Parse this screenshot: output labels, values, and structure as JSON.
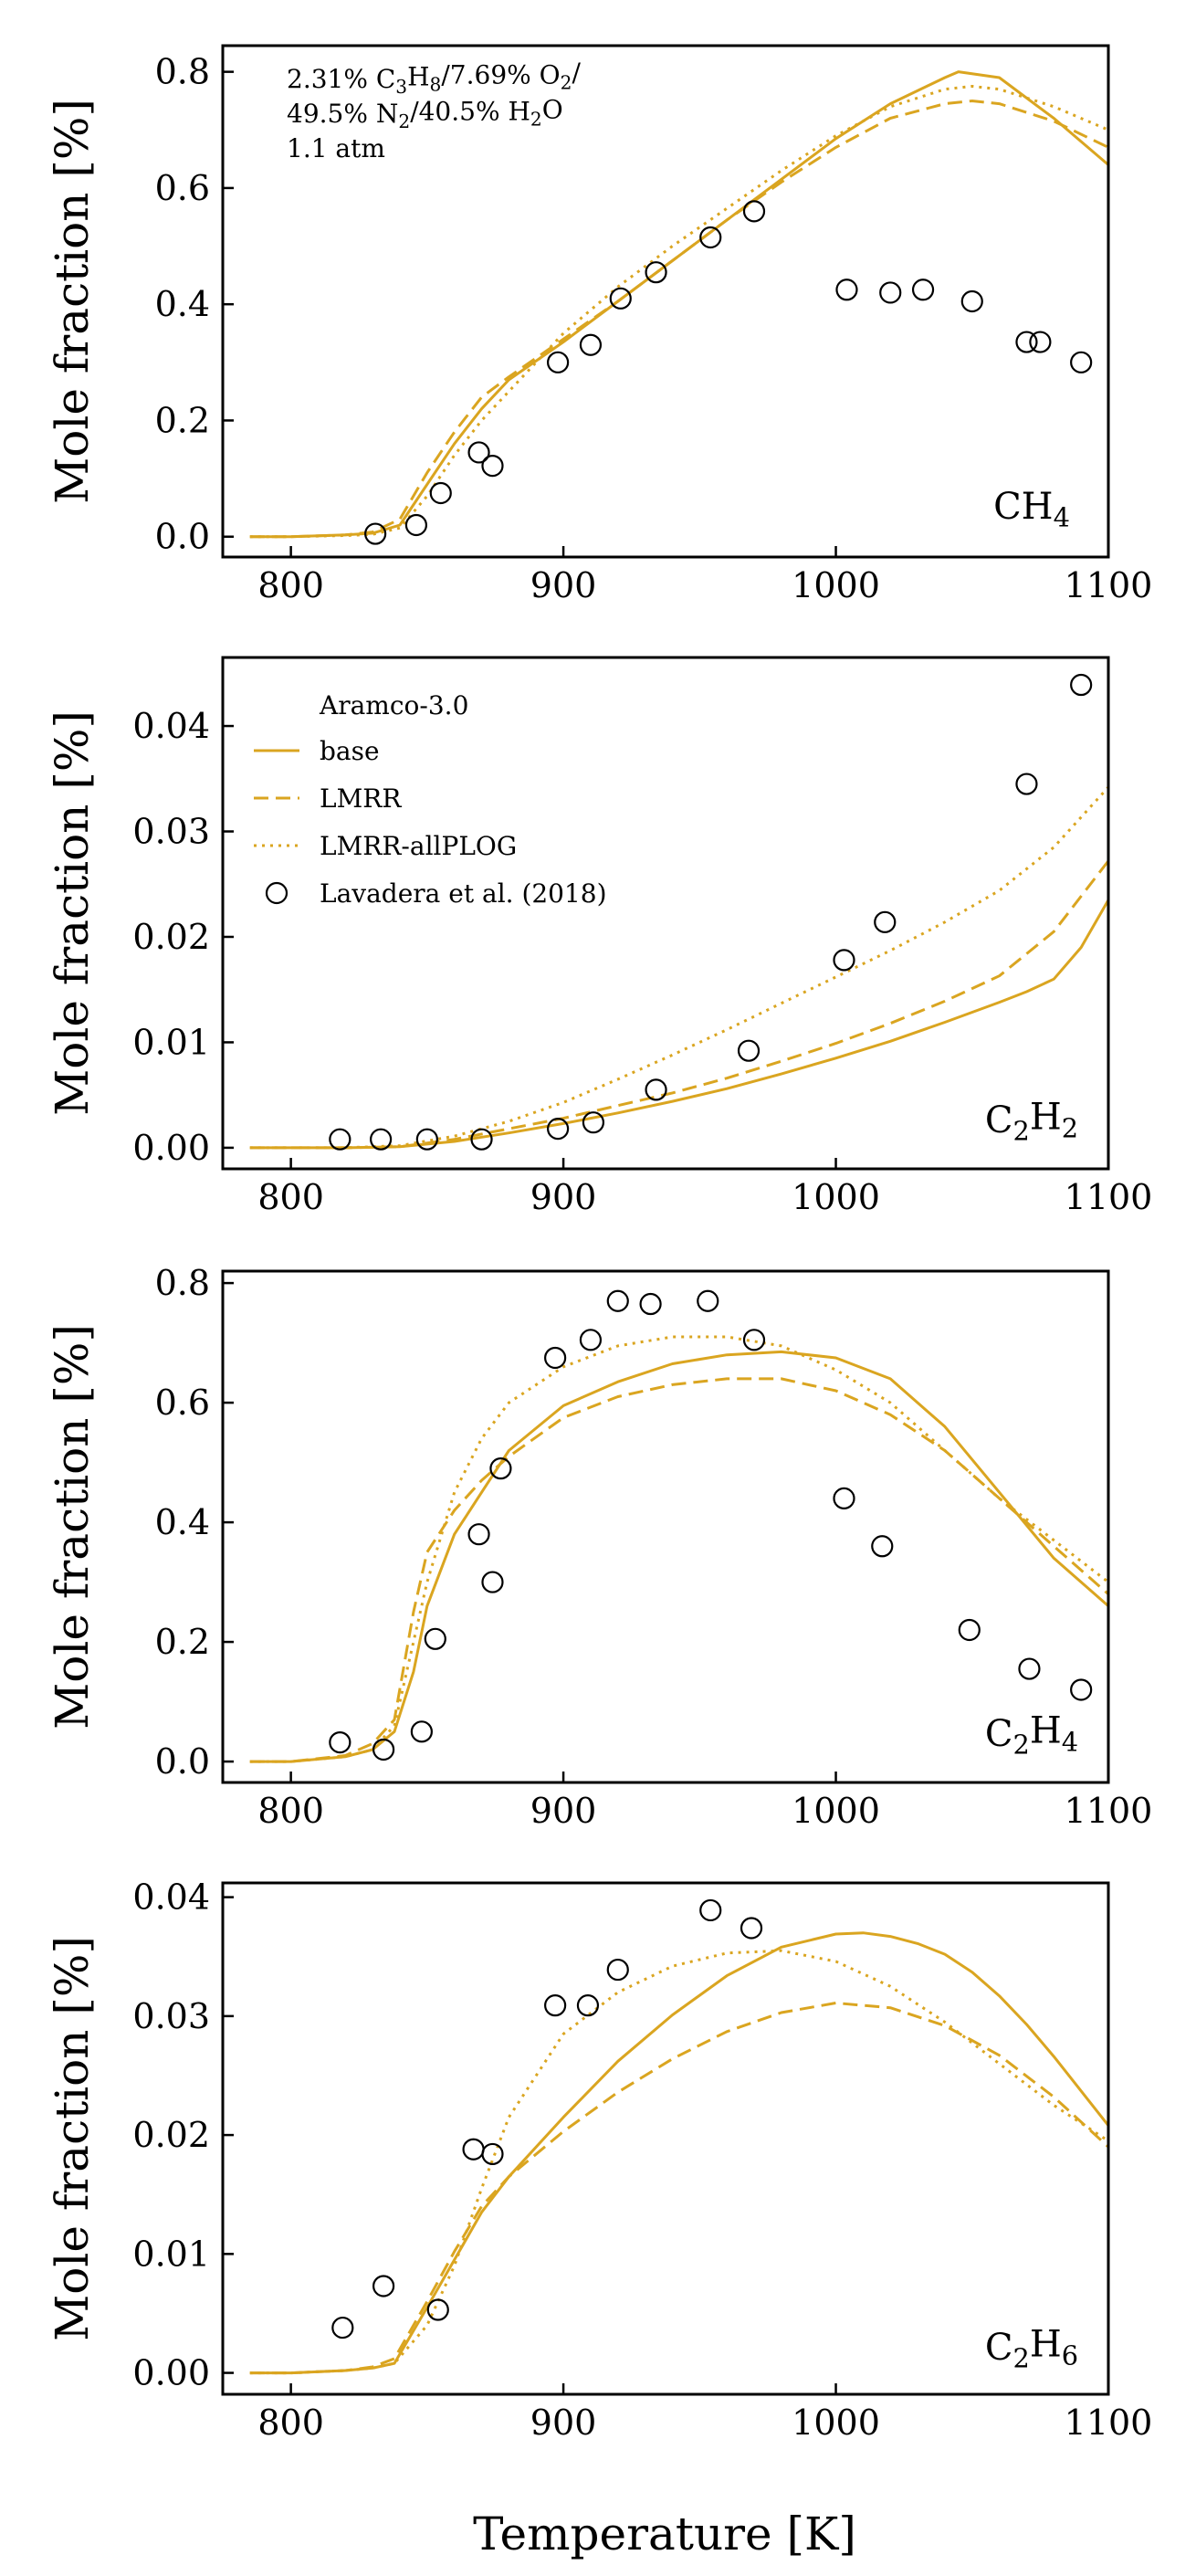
{
  "figure": {
    "xlabel": "Temperature [K]",
    "color": "#DAA520"
  },
  "legend": {
    "title": "Aramco-3.0",
    "entries": [
      "base",
      "LMRR",
      "LMRR-allPLOG",
      "Lavadera et al. (2018)"
    ]
  },
  "annotation": {
    "lines": [
      [
        "2.31% C",
        {
          "sub": "3"
        },
        "H",
        {
          "sub": "8"
        },
        "/7.69% O",
        {
          "sub": "2"
        },
        "/"
      ],
      [
        "49.5% N",
        {
          "sub": "2"
        },
        "/40.5% H",
        {
          "sub": "2"
        },
        "O"
      ],
      [
        "1.1 atm"
      ]
    ]
  },
  "chart_data": [
    {
      "type": "line",
      "species": [
        "CH",
        {
          "sub": "4"
        }
      ],
      "ylabel": "Mole fraction [%]",
      "xlim": [
        775,
        1100
      ],
      "ylim": [
        -0.035,
        0.845
      ],
      "xticks": [
        800,
        900,
        1000,
        1100
      ],
      "yticks": [
        0.0,
        0.2,
        0.4,
        0.6,
        0.8
      ],
      "ytick_labels": [
        "0.0",
        "0.2",
        "0.4",
        "0.6",
        "0.8"
      ],
      "series": [
        {
          "name": "base",
          "style": "solid",
          "x": [
            785,
            800,
            820,
            830,
            840,
            850,
            860,
            870,
            880,
            900,
            920,
            940,
            960,
            980,
            1000,
            1020,
            1040,
            1045,
            1060,
            1080,
            1100
          ],
          "y": [
            0,
            0,
            0.003,
            0.006,
            0.02,
            0.09,
            0.16,
            0.22,
            0.27,
            0.335,
            0.405,
            0.475,
            0.545,
            0.615,
            0.685,
            0.745,
            0.79,
            0.8,
            0.79,
            0.72,
            0.64
          ]
        },
        {
          "name": "LMRR",
          "style": "dashed",
          "x": [
            785,
            800,
            820,
            830,
            840,
            850,
            860,
            870,
            880,
            900,
            920,
            940,
            960,
            980,
            1000,
            1020,
            1040,
            1050,
            1060,
            1080,
            1100
          ],
          "y": [
            0,
            0,
            0.003,
            0.008,
            0.03,
            0.11,
            0.18,
            0.24,
            0.275,
            0.34,
            0.405,
            0.475,
            0.545,
            0.61,
            0.67,
            0.72,
            0.745,
            0.75,
            0.745,
            0.715,
            0.67
          ]
        },
        {
          "name": "LMRR-allPLOG",
          "style": "dotted",
          "x": [
            785,
            800,
            820,
            830,
            840,
            850,
            860,
            870,
            880,
            900,
            920,
            940,
            960,
            980,
            1000,
            1020,
            1040,
            1050,
            1060,
            1080,
            1100
          ],
          "y": [
            0,
            0,
            0.002,
            0.004,
            0.015,
            0.07,
            0.14,
            0.2,
            0.25,
            0.35,
            0.43,
            0.5,
            0.565,
            0.63,
            0.69,
            0.74,
            0.77,
            0.775,
            0.77,
            0.74,
            0.7
          ]
        },
        {
          "name": "Lavadera et al. (2018)",
          "style": "markers",
          "x": [
            831,
            846,
            855,
            869,
            874,
            898,
            910,
            921,
            934,
            954,
            970,
            1004,
            1020,
            1032,
            1050,
            1070,
            1075,
            1090
          ],
          "y": [
            0.005,
            0.02,
            0.075,
            0.145,
            0.122,
            0.3,
            0.33,
            0.41,
            0.455,
            0.515,
            0.56,
            0.425,
            0.42,
            0.425,
            0.405,
            0.335,
            0.335,
            0.3
          ]
        }
      ]
    },
    {
      "type": "line",
      "species": [
        "C",
        {
          "sub": "2"
        },
        "H",
        {
          "sub": "2"
        }
      ],
      "ylabel": "Mole fraction [%]",
      "xlim": [
        775,
        1100
      ],
      "ylim": [
        -0.002,
        0.0465
      ],
      "xticks": [
        800,
        900,
        1000,
        1100
      ],
      "yticks": [
        0.0,
        0.01,
        0.02,
        0.03,
        0.04
      ],
      "ytick_labels": [
        "0.00",
        "0.01",
        "0.02",
        "0.03",
        "0.04"
      ],
      "series": [
        {
          "name": "base",
          "style": "solid",
          "x": [
            785,
            800,
            820,
            840,
            860,
            880,
            900,
            920,
            940,
            960,
            980,
            1000,
            1020,
            1040,
            1060,
            1070,
            1080,
            1090,
            1100
          ],
          "y": [
            0,
            0,
            0,
            0.0001,
            0.0006,
            0.0014,
            0.0023,
            0.0033,
            0.0044,
            0.0056,
            0.007,
            0.0085,
            0.0101,
            0.0119,
            0.0138,
            0.0148,
            0.016,
            0.019,
            0.0235
          ]
        },
        {
          "name": "LMRR",
          "style": "dashed",
          "x": [
            785,
            800,
            820,
            840,
            860,
            880,
            900,
            920,
            940,
            960,
            980,
            1000,
            1020,
            1040,
            1060,
            1080,
            1100
          ],
          "y": [
            0,
            0,
            0,
            0.0001,
            0.0008,
            0.0018,
            0.0028,
            0.004,
            0.0052,
            0.0066,
            0.0082,
            0.0099,
            0.0118,
            0.0139,
            0.0163,
            0.0205,
            0.0272
          ]
        },
        {
          "name": "LMRR-allPLOG",
          "style": "dotted",
          "x": [
            785,
            800,
            820,
            840,
            860,
            880,
            900,
            920,
            940,
            960,
            980,
            1000,
            1020,
            1040,
            1060,
            1080,
            1100
          ],
          "y": [
            0,
            0,
            0,
            0.0002,
            0.0011,
            0.0025,
            0.0043,
            0.0065,
            0.0088,
            0.0112,
            0.0137,
            0.0162,
            0.0187,
            0.0214,
            0.0244,
            0.0285,
            0.0342
          ]
        },
        {
          "name": "Lavadera et al. (2018)",
          "style": "markers",
          "x": [
            818,
            833,
            850,
            870,
            898,
            911,
            934,
            968,
            1003,
            1018,
            1070,
            1090
          ],
          "y": [
            0.0008,
            0.0008,
            0.0008,
            0.0008,
            0.0018,
            0.0024,
            0.0055,
            0.0092,
            0.0178,
            0.0214,
            0.0345,
            0.0439
          ]
        }
      ]
    },
    {
      "type": "line",
      "species": [
        "C",
        {
          "sub": "2"
        },
        "H",
        {
          "sub": "4"
        }
      ],
      "ylabel": "Mole fraction [%]",
      "xlim": [
        775,
        1100
      ],
      "ylim": [
        -0.035,
        0.82
      ],
      "xticks": [
        800,
        900,
        1000,
        1100
      ],
      "yticks": [
        0.0,
        0.2,
        0.4,
        0.6,
        0.8
      ],
      "ytick_labels": [
        "0.0",
        "0.2",
        "0.4",
        "0.6",
        "0.8"
      ],
      "series": [
        {
          "name": "base",
          "style": "solid",
          "x": [
            785,
            800,
            820,
            830,
            838,
            845,
            850,
            860,
            870,
            880,
            900,
            920,
            940,
            960,
            980,
            1000,
            1020,
            1040,
            1060,
            1080,
            1100
          ],
          "y": [
            0,
            0,
            0.008,
            0.02,
            0.05,
            0.15,
            0.26,
            0.38,
            0.45,
            0.52,
            0.595,
            0.635,
            0.665,
            0.68,
            0.685,
            0.675,
            0.64,
            0.56,
            0.45,
            0.34,
            0.26
          ]
        },
        {
          "name": "LMRR",
          "style": "dashed",
          "x": [
            785,
            800,
            820,
            830,
            838,
            845,
            850,
            860,
            870,
            880,
            900,
            920,
            940,
            960,
            980,
            1000,
            1020,
            1040,
            1060,
            1080,
            1100
          ],
          "y": [
            0,
            0,
            0.01,
            0.03,
            0.07,
            0.25,
            0.35,
            0.42,
            0.47,
            0.51,
            0.575,
            0.61,
            0.63,
            0.64,
            0.64,
            0.62,
            0.58,
            0.52,
            0.44,
            0.36,
            0.28
          ]
        },
        {
          "name": "LMRR-allPLOG",
          "style": "dotted",
          "x": [
            785,
            800,
            820,
            830,
            838,
            845,
            850,
            860,
            870,
            880,
            900,
            920,
            940,
            960,
            980,
            1000,
            1020,
            1040,
            1060,
            1080,
            1100
          ],
          "y": [
            0,
            0,
            0.008,
            0.02,
            0.06,
            0.2,
            0.3,
            0.45,
            0.54,
            0.6,
            0.66,
            0.695,
            0.71,
            0.71,
            0.695,
            0.655,
            0.6,
            0.52,
            0.44,
            0.37,
            0.3
          ]
        },
        {
          "name": "Lavadera et al. (2018)",
          "style": "markers",
          "x": [
            818,
            834,
            848,
            853,
            869,
            874,
            877,
            897,
            910,
            920,
            932,
            953,
            970,
            1003,
            1017,
            1049,
            1071,
            1090
          ],
          "y": [
            0.032,
            0.02,
            0.05,
            0.205,
            0.38,
            0.3,
            0.49,
            0.675,
            0.705,
            0.77,
            0.765,
            0.77,
            0.705,
            0.44,
            0.36,
            0.22,
            0.155,
            0.12
          ]
        }
      ]
    },
    {
      "type": "line",
      "species": [
        "C",
        {
          "sub": "2"
        },
        "H",
        {
          "sub": "6"
        }
      ],
      "ylabel": "Mole fraction [%]",
      "xlim": [
        775,
        1100
      ],
      "ylim": [
        -0.0018,
        0.0412
      ],
      "xticks": [
        800,
        900,
        1000,
        1100
      ],
      "yticks": [
        0.0,
        0.01,
        0.02,
        0.03,
        0.04
      ],
      "ytick_labels": [
        "0.00",
        "0.01",
        "0.02",
        "0.03",
        "0.04"
      ],
      "series": [
        {
          "name": "base",
          "style": "solid",
          "x": [
            785,
            800,
            820,
            830,
            838,
            850,
            860,
            870,
            880,
            900,
            920,
            940,
            960,
            980,
            1000,
            1010,
            1020,
            1030,
            1040,
            1050,
            1060,
            1070,
            1080,
            1090,
            1100
          ],
          "y": [
            0,
            0,
            0.0002,
            0.0004,
            0.0008,
            0.0055,
            0.0095,
            0.0135,
            0.0165,
            0.0215,
            0.0262,
            0.0301,
            0.0334,
            0.0358,
            0.0369,
            0.037,
            0.0367,
            0.0361,
            0.0352,
            0.0337,
            0.0317,
            0.0293,
            0.0266,
            0.0237,
            0.0208
          ]
        },
        {
          "name": "LMRR",
          "style": "dashed",
          "x": [
            785,
            800,
            820,
            830,
            838,
            850,
            860,
            870,
            880,
            900,
            920,
            940,
            960,
            980,
            1000,
            1020,
            1040,
            1060,
            1080,
            1100
          ],
          "y": [
            0,
            0,
            0.0002,
            0.0005,
            0.0012,
            0.006,
            0.0102,
            0.014,
            0.0165,
            0.0203,
            0.0236,
            0.0264,
            0.0287,
            0.0303,
            0.0311,
            0.0307,
            0.0292,
            0.0267,
            0.0232,
            0.019
          ]
        },
        {
          "name": "LMRR-allPLOG",
          "style": "dotted",
          "x": [
            785,
            800,
            820,
            830,
            838,
            850,
            860,
            870,
            880,
            900,
            920,
            940,
            960,
            980,
            1000,
            1020,
            1040,
            1060,
            1080,
            1100
          ],
          "y": [
            0,
            0,
            0.0002,
            0.0004,
            0.0008,
            0.004,
            0.009,
            0.0155,
            0.0215,
            0.0285,
            0.032,
            0.0342,
            0.0353,
            0.0355,
            0.0346,
            0.0325,
            0.0295,
            0.026,
            0.0225,
            0.0195
          ]
        },
        {
          "name": "Lavadera et al. (2018)",
          "style": "markers",
          "x": [
            819,
            834,
            854,
            867,
            874,
            897,
            909,
            920,
            954,
            969
          ],
          "y": [
            0.0038,
            0.0073,
            0.0053,
            0.0188,
            0.0184,
            0.0309,
            0.0309,
            0.0339,
            0.0389,
            0.0374
          ]
        }
      ]
    }
  ]
}
